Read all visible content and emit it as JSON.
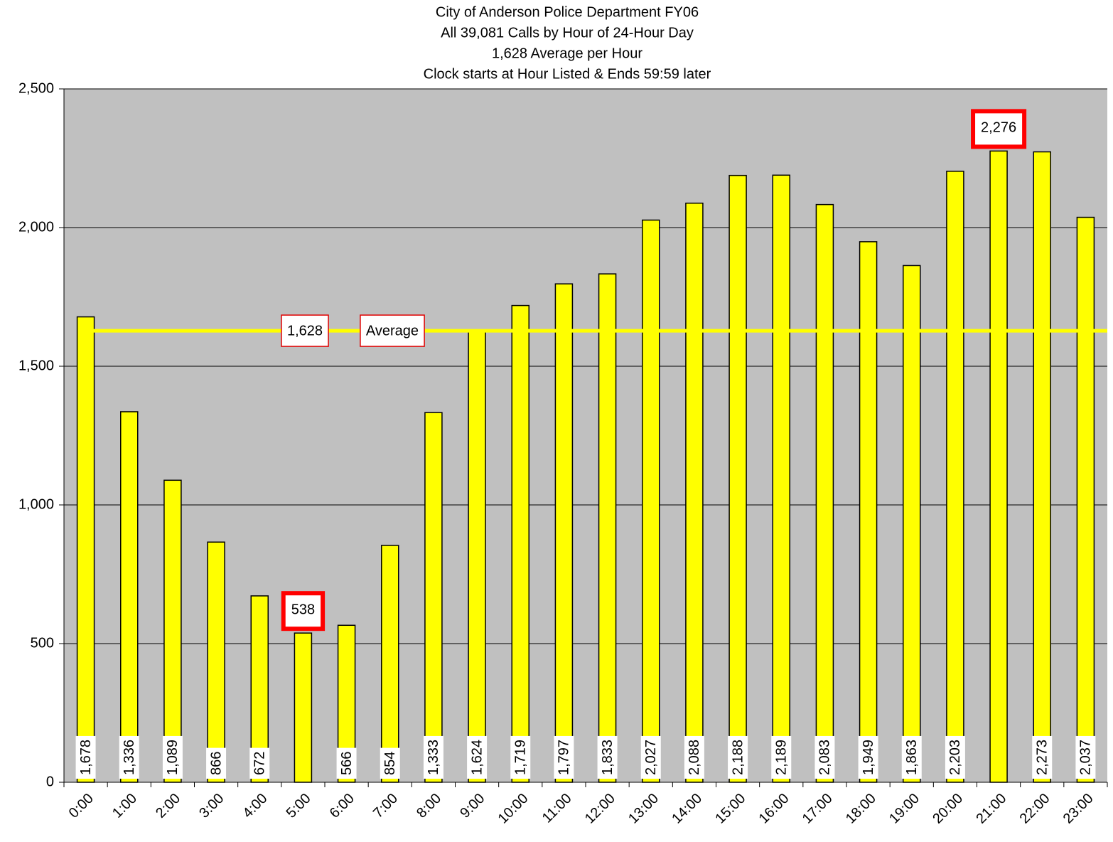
{
  "chart_data": {
    "type": "bar",
    "title": [
      "City of Anderson Police Department FY06",
      "All 39,081 Calls by Hour of 24-Hour Day",
      "1,628 Average per Hour",
      "Clock starts at Hour Listed & Ends 59:59 later"
    ],
    "categories": [
      "0:00",
      "1:00",
      "2:00",
      "3:00",
      "4:00",
      "5:00",
      "6:00",
      "7:00",
      "8:00",
      "9:00",
      "10:00",
      "11:00",
      "12:00",
      "13:00",
      "14:00",
      "15:00",
      "16:00",
      "17:00",
      "18:00",
      "19:00",
      "20:00",
      "21:00",
      "22:00",
      "23:00"
    ],
    "values": [
      1678,
      1336,
      1089,
      866,
      672,
      538,
      566,
      854,
      1333,
      1624,
      1719,
      1797,
      1833,
      2027,
      2088,
      2188,
      2189,
      2083,
      1949,
      1863,
      2203,
      2276,
      2273,
      2037
    ],
    "value_labels": [
      "1,678",
      "1,336",
      "1,089",
      "866",
      "672",
      "538",
      "566",
      "854",
      "1,333",
      "1,624",
      "1,719",
      "1,797",
      "1,833",
      "2,027",
      "2,088",
      "2,188",
      "2,189",
      "2,083",
      "1,949",
      "1,863",
      "2,203",
      "2,276",
      "2,273",
      "2,037"
    ],
    "highlighted": [
      5,
      21
    ],
    "color": "#ffff00",
    "average": {
      "value": 1628,
      "value_label": "1,628",
      "label": "Average"
    },
    "ylim": [
      0,
      2500
    ],
    "yticks": [
      0,
      {
        "value": 500,
        "label": "500"
      },
      {
        "value": 1000,
        "label": "1,000"
      },
      {
        "value": 1500,
        "label": "1,500"
      },
      {
        "value": 2000,
        "label": "2,000"
      },
      {
        "value": 2500,
        "label": "2,500"
      }
    ],
    "grid": true
  }
}
